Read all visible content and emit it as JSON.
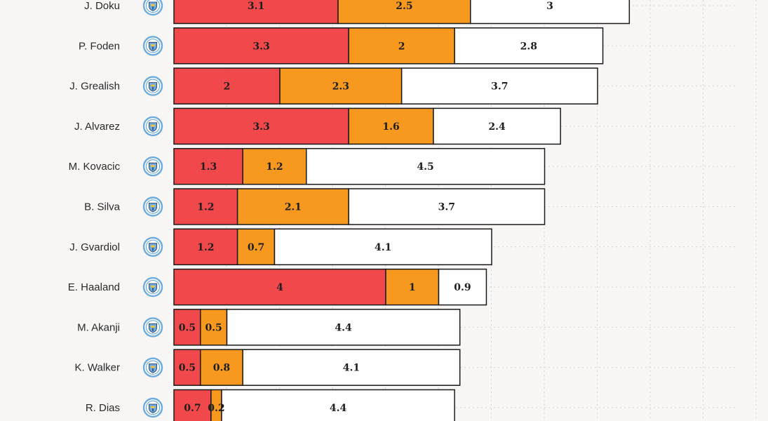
{
  "chart_data": {
    "type": "bar",
    "orientation": "horizontal",
    "stacked": true,
    "grid": true,
    "club_badge_icon": "man-city-crest-icon",
    "colors": {
      "segment_1": "#f0484b",
      "segment_2": "#f6991e",
      "segment_3": "#ffffff",
      "bar_outline": "#1a1a1a",
      "badge_blue": "#6cabdd",
      "badge_navy": "#1c2c5b",
      "background": "#f8f6f5",
      "grid": "#d6d3d1"
    },
    "categories": [
      "J. Doku",
      "P. Foden",
      "J. Grealish",
      "J. Alvarez",
      "M. Kovacic",
      "B. Silva",
      "J. Gvardiol",
      "E. Haaland",
      "M. Akanji",
      "K. Walker",
      "R. Dias"
    ],
    "series": [
      {
        "values": [
          3.1,
          3.3,
          2,
          3.3,
          1.3,
          1.2,
          1.2,
          4,
          0.5,
          0.5,
          0.7
        ]
      },
      {
        "values": [
          2.5,
          2,
          2.3,
          1.6,
          1.2,
          2.1,
          0.7,
          1,
          0.5,
          0.8,
          0.2
        ]
      },
      {
        "values": [
          3,
          2.8,
          3.7,
          2.4,
          4.5,
          3.7,
          4.1,
          0.9,
          4.4,
          4.1,
          4.4
        ]
      }
    ]
  }
}
